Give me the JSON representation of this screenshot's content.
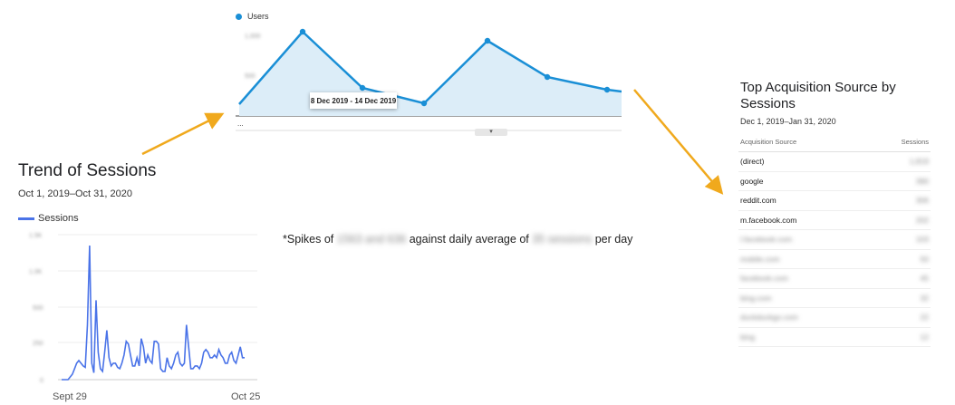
{
  "users_chart": {
    "legend": "Users",
    "series_color": "#1a8fd6",
    "y_ticks_blurred": [
      "1,000",
      "500"
    ],
    "tooltip": "8 Dec 2019 - 14 Dec 2019",
    "scroll_label": "▾",
    "bottom_text": "..."
  },
  "trend": {
    "title": "Trend of Sessions",
    "date_range": "Oct 1, 2019–Oct 31, 2020",
    "legend": "Sessions",
    "color": "#4a73e8",
    "x_first": "Sept 29",
    "x_last": "Oct 25",
    "y_ticks_blurred": [
      "1.5K",
      "1.0K",
      "500",
      "250",
      "0"
    ]
  },
  "note": {
    "prefix": "*Spikes of ",
    "blurred1": "1563 and 636",
    "middle": " against daily average of ",
    "blurred2": "35 sessions",
    "suffix": " per day"
  },
  "acquisition": {
    "title": "Top Acquisition Source by Sessions",
    "date_range": "Dec 1, 2019–Jan 31, 2020",
    "col_source": "Acquisition Source",
    "col_sessions": "Sessions",
    "rows": [
      {
        "source": "(direct)",
        "value": "1,819"
      },
      {
        "source": "google",
        "value": "390"
      },
      {
        "source": "reddit.com",
        "value": "306"
      },
      {
        "source": "m.facebook.com",
        "value": "202"
      },
      {
        "source": "l.facebook.com",
        "value": "103"
      },
      {
        "source": "mobile.com",
        "value": "50"
      },
      {
        "source": "facebook.com",
        "value": "45"
      },
      {
        "source": "bing.com",
        "value": "32"
      },
      {
        "source": "duckduckgo.com",
        "value": "22"
      },
      {
        "source": "bing",
        "value": "12"
      }
    ],
    "hidden_from_row": 4
  },
  "arrow_color": "#f0a91d"
}
